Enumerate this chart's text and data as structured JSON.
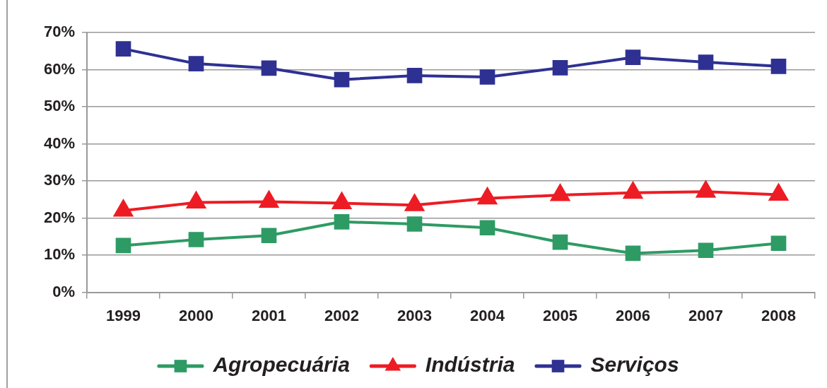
{
  "chart_data": {
    "type": "line",
    "categories": [
      "1999",
      "2000",
      "2001",
      "2002",
      "2003",
      "2004",
      "2005",
      "2006",
      "2007",
      "2008"
    ],
    "series": [
      {
        "name": "Agropecuária",
        "color": "#2e9b64",
        "marker": "square",
        "values": [
          12.6,
          14.2,
          15.3,
          19.0,
          18.4,
          17.4,
          13.5,
          10.5,
          11.3,
          13.2
        ]
      },
      {
        "name": "Indústria",
        "color": "#ed1c24",
        "marker": "triangle",
        "values": [
          22.0,
          24.2,
          24.4,
          24.0,
          23.5,
          25.3,
          26.2,
          26.8,
          27.1,
          26.3
        ]
      },
      {
        "name": "Serviços",
        "color": "#2e3192",
        "marker": "square",
        "values": [
          65.6,
          61.6,
          60.4,
          57.3,
          58.4,
          58.0,
          60.5,
          63.3,
          62.0,
          60.9
        ]
      }
    ],
    "ylim": [
      0,
      70
    ],
    "yticks": [
      {
        "value": 0,
        "label": "0%"
      },
      {
        "value": 10,
        "label": "10%"
      },
      {
        "value": 20,
        "label": "20%"
      },
      {
        "value": 30,
        "label": "30%"
      },
      {
        "value": 40,
        "label": "40%"
      },
      {
        "value": 50,
        "label": "50%"
      },
      {
        "value": 60,
        "label": "60%"
      },
      {
        "value": 70,
        "label": "70%"
      }
    ],
    "grid": "y",
    "legend": "bottom",
    "line_style": "solid"
  }
}
